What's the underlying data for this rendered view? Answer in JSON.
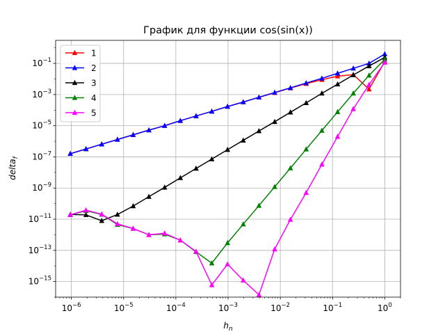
{
  "chart_data": {
    "type": "line",
    "title": "График для функции cos(sin(x))",
    "xlabel": "h_n",
    "ylabel": "delta_f",
    "xscale": "log",
    "yscale": "log",
    "xlim": [
      5e-07,
      2
    ],
    "ylim": [
      1e-16,
      3
    ],
    "grid": true,
    "legend_position": "upper-left",
    "x": [
      9.5367e-07,
      1.9073e-06,
      3.8147e-06,
      7.6294e-06,
      1.5259e-05,
      3.0518e-05,
      6.1035e-05,
      0.00012207,
      0.00024414,
      0.00048828,
      0.00097656,
      0.0019531,
      0.0039063,
      0.0078125,
      0.015625,
      0.03125,
      0.0625,
      0.125,
      0.25,
      0.5,
      1
    ],
    "x_tick_labels": [
      {
        "base": "10",
        "exp": "−6",
        "value": 1e-06
      },
      {
        "base": "10",
        "exp": "−5",
        "value": 1e-05
      },
      {
        "base": "10",
        "exp": "−4",
        "value": 0.0001
      },
      {
        "base": "10",
        "exp": "−3",
        "value": 0.001
      },
      {
        "base": "10",
        "exp": "−2",
        "value": 0.01
      },
      {
        "base": "10",
        "exp": "−1",
        "value": 0.1
      },
      {
        "base": "10",
        "exp": "0",
        "value": 1
      }
    ],
    "y_tick_labels": [
      {
        "base": "10",
        "exp": "−15",
        "value": 1e-15
      },
      {
        "base": "10",
        "exp": "−13",
        "value": 1e-13
      },
      {
        "base": "10",
        "exp": "−11",
        "value": 1e-11
      },
      {
        "base": "10",
        "exp": "−9",
        "value": 1e-09
      },
      {
        "base": "10",
        "exp": "−7",
        "value": 1e-07
      },
      {
        "base": "10",
        "exp": "−5",
        "value": 1e-05
      },
      {
        "base": "10",
        "exp": "−3",
        "value": 0.001
      },
      {
        "base": "10",
        "exp": "−1",
        "value": 0.1
      }
    ],
    "series": [
      {
        "name": "1",
        "color": "#ff0000",
        "marker": "triangle-up",
        "values": [
          1.6e-07,
          3.2e-07,
          6.5e-07,
          1.3e-06,
          2.6e-06,
          5.2e-06,
          1e-05,
          2.1e-05,
          4.2e-05,
          8.3e-05,
          0.00017,
          0.00033,
          0.00066,
          0.0013,
          0.0026,
          0.005,
          0.009,
          0.015,
          0.019,
          0.0022,
          0.13
        ]
      },
      {
        "name": "2",
        "color": "#0000ff",
        "marker": "triangle-up",
        "values": [
          1.6e-07,
          3.2e-07,
          6.5e-07,
          1.3e-06,
          2.6e-06,
          5.2e-06,
          1e-05,
          2.1e-05,
          4.2e-05,
          8.3e-05,
          0.00017,
          0.00033,
          0.00067,
          0.00135,
          0.0027,
          0.0055,
          0.011,
          0.023,
          0.048,
          0.1,
          0.4
        ]
      },
      {
        "name": "3",
        "color": "#000000",
        "marker": "triangle-up",
        "values": [
          2e-11,
          1.9e-11,
          8e-12,
          2e-11,
          7e-11,
          2.8e-10,
          1.1e-09,
          4.5e-09,
          1.8e-08,
          7.2e-08,
          2.9e-07,
          1.15e-06,
          4.6e-06,
          1.8e-05,
          7.3e-05,
          0.00029,
          0.0012,
          0.0046,
          0.018,
          0.068,
          0.24
        ]
      },
      {
        "name": "4",
        "color": "#008000",
        "marker": "triangle-up",
        "values": [
          1.9e-11,
          3.5e-11,
          2e-11,
          4.5e-12,
          2.5e-12,
          1e-12,
          1.1e-12,
          4.5e-13,
          8e-14,
          1.5e-14,
          3e-13,
          4.8e-12,
          7.5e-11,
          1.2e-09,
          1.9e-08,
          3.1e-07,
          4.9e-06,
          7.7e-05,
          0.0012,
          0.017,
          0.18
        ]
      },
      {
        "name": "5",
        "color": "#ff00ff",
        "marker": "triangle-up",
        "values": [
          1.9e-11,
          3.8e-11,
          2.1e-11,
          5e-12,
          2.5e-12,
          1e-12,
          1.25e-12,
          4.5e-13,
          8.5e-14,
          6e-16,
          1.3e-14,
          1.2e-15,
          1.4e-16,
          1.2e-13,
          9.5e-12,
          5e-10,
          3.3e-08,
          2e-06,
          0.00012,
          0.0043,
          0.115
        ]
      }
    ]
  }
}
